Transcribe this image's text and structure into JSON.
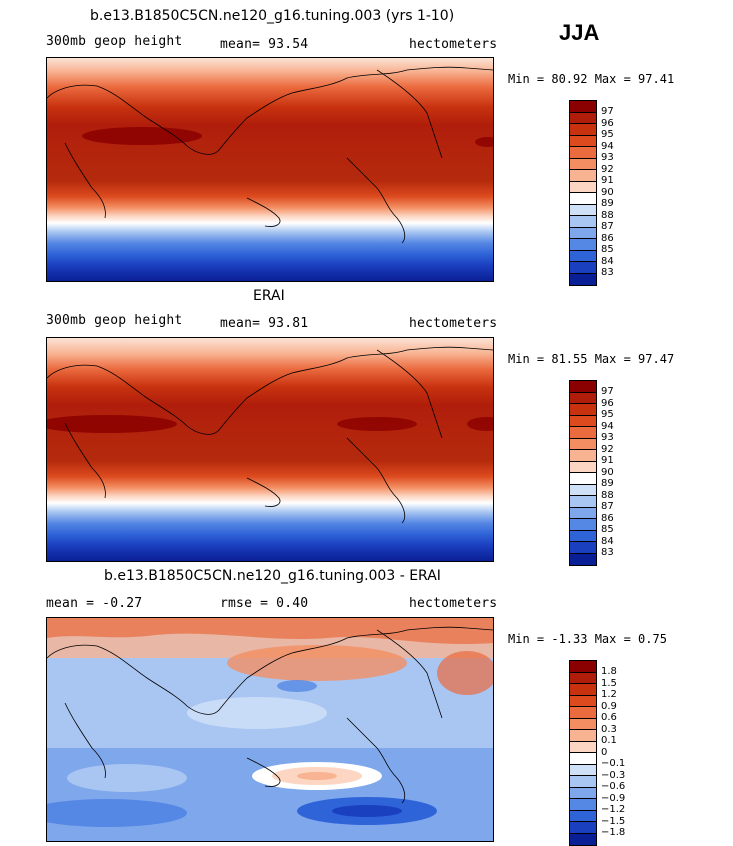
{
  "season": "JJA",
  "panels": [
    {
      "title": "b.e13.B1850C5CN.ne120_g16.tuning.003 (yrs 1-10)",
      "left_label": "300mb geop height",
      "mid_label": "mean=  93.54",
      "right_label": "hectometers",
      "minmax": "Min =  80.92 Max =  97.41",
      "colorbar_labels": [
        "97",
        "96",
        "95",
        "94",
        "93",
        "92",
        "91",
        "90",
        "89",
        "88",
        "87",
        "86",
        "85",
        "84",
        "83"
      ],
      "colorbar_colors": [
        "#8b0000",
        "#b01e0b",
        "#c8320f",
        "#dc4a1e",
        "#eb6a3e",
        "#f38e63",
        "#f8b392",
        "#fcd6c2",
        "#ffffff",
        "#d0e1f7",
        "#a9c6f2",
        "#7fa7ec",
        "#5587e4",
        "#2f63d8",
        "#1a3fbf",
        "#0a1f96"
      ]
    },
    {
      "title": "ERAI",
      "left_label": "300mb geop height",
      "mid_label": "mean=  93.81",
      "right_label": "hectometers",
      "minmax": "Min =  81.55 Max =  97.47",
      "colorbar_labels": [
        "97",
        "96",
        "95",
        "94",
        "93",
        "92",
        "91",
        "90",
        "89",
        "88",
        "87",
        "86",
        "85",
        "84",
        "83"
      ],
      "colorbar_colors": [
        "#8b0000",
        "#b01e0b",
        "#c8320f",
        "#dc4a1e",
        "#eb6a3e",
        "#f38e63",
        "#f8b392",
        "#fcd6c2",
        "#ffffff",
        "#d0e1f7",
        "#a9c6f2",
        "#7fa7ec",
        "#5587e4",
        "#2f63d8",
        "#1a3fbf",
        "#0a1f96"
      ]
    },
    {
      "title": "b.e13.B1850C5CN.ne120_g16.tuning.003 - ERAI",
      "left_label": "mean =  -0.27",
      "mid_label": "rmse =   0.40",
      "right_label": "hectometers",
      "minmax": "Min =  -1.33 Max =   0.75",
      "colorbar_labels": [
        "1.8",
        "1.5",
        "1.2",
        "0.9",
        "0.6",
        "0.3",
        "0.1",
        "0",
        "−0.1",
        "−0.3",
        "−0.6",
        "−0.9",
        "−1.2",
        "−1.5",
        "−1.8"
      ],
      "colorbar_colors": [
        "#8b0000",
        "#b01e0b",
        "#c8320f",
        "#dc4a1e",
        "#eb6a3e",
        "#f38e63",
        "#f8b392",
        "#fcd6c2",
        "#ffffff",
        "#d0e1f7",
        "#a9c6f2",
        "#7fa7ec",
        "#5587e4",
        "#2f63d8",
        "#1a3fbf",
        "#0a1f96"
      ]
    }
  ]
}
